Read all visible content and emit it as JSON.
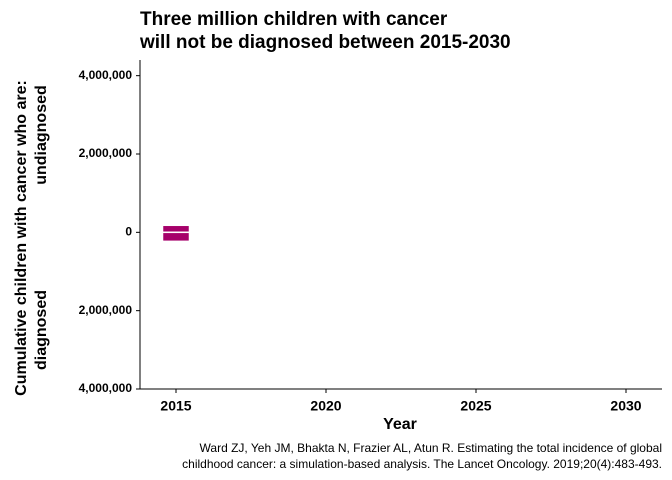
{
  "chart_data": {
    "type": "bar",
    "title": [
      "Three million children with cancer",
      "will not be diagnosed between 2015-2030"
    ],
    "x_label": "Year",
    "y_label": "Cumulative children with cancer who are:",
    "y_label_upper": "undiagnosed",
    "y_label_lower": "diagnosed",
    "caption": [
      "Ward ZJ, Yeh JM, Bhakta N, Frazier AL, Atun R. Estimating the total incidence of global",
      "childhood cancer: a simulation-based analysis. The Lancet Oncology. 2019;20(4):483-493."
    ],
    "x": [
      2015
    ],
    "series": [
      {
        "name": "undiagnosed",
        "color": "#a6006a",
        "values": [
          180000
        ]
      },
      {
        "name": "diagnosed",
        "color": "#a6006a",
        "values": [
          -230000
        ]
      }
    ],
    "xlim": [
      2013.8,
      2031.2
    ],
    "xticks": [
      2015,
      2020,
      2025,
      2030
    ],
    "ylim": [
      -4000000,
      4400000
    ],
    "yticks": [
      {
        "value": -4000000,
        "label": "4,000,000"
      },
      {
        "value": -2000000,
        "label": "2,000,000"
      },
      0,
      {
        "value": 2000000,
        "label": "2,000,000"
      },
      {
        "value": 4000000,
        "label": "4,000,000"
      }
    ],
    "grid": false
  }
}
